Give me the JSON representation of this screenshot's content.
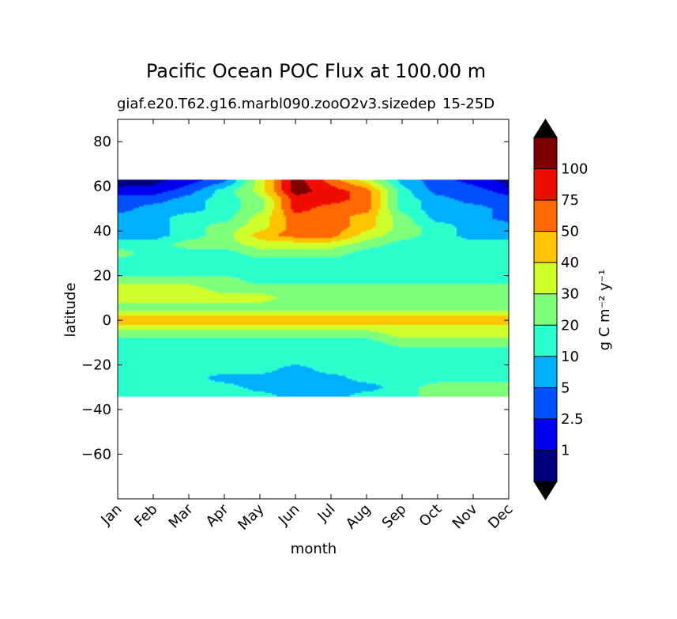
{
  "chart_data": {
    "type": "contourf",
    "title": "Pacific Ocean POC Flux at 100.00 m",
    "subtitle_left": "giaf.e20.T62.g16.marbl090.zooO2v3.sizedep",
    "subtitle_right": "15-25D",
    "xlabel": "month",
    "ylabel": "latitude",
    "x_ticks": [
      "Jan",
      "Feb",
      "Mar",
      "Apr",
      "May",
      "Jun",
      "Jul",
      "Aug",
      "Sep",
      "Oct",
      "Nov",
      "Dec"
    ],
    "y_ticks": [
      80,
      60,
      40,
      20,
      0,
      -20,
      -40,
      -60
    ],
    "ylim": [
      -80,
      90
    ],
    "data_lat_range": [
      -34,
      63
    ],
    "colorbar": {
      "label": "g C m⁻² y⁻¹",
      "levels": [
        "1",
        "2.5",
        "5",
        "10",
        "20",
        "30",
        "40",
        "50",
        "75",
        "100"
      ],
      "colors": [
        "#00007f",
        "#0000f0",
        "#0050ff",
        "#00b0ff",
        "#29ffce",
        "#7dff7a",
        "#ceff29",
        "#ffc400",
        "#ff6800",
        "#f00d00",
        "#7f0000"
      ],
      "extend": "both"
    },
    "x_months": [
      0,
      1,
      2,
      3,
      4,
      5,
      6,
      7,
      8,
      9,
      10,
      11
    ],
    "lat_grid": [
      -34,
      -30,
      -26,
      -22,
      -18,
      -14,
      -10,
      -6,
      -3,
      -1,
      1,
      3,
      6,
      10,
      14,
      18,
      22,
      26,
      30,
      34,
      38,
      42,
      46,
      50,
      54,
      58,
      63
    ],
    "class_values_by_month": [
      [
        4,
        4,
        4,
        4,
        4,
        4,
        4,
        5,
        6,
        7,
        7,
        6,
        5,
        6,
        6,
        5,
        4,
        4,
        5,
        4,
        3,
        3,
        3,
        2,
        2,
        1,
        0
      ],
      [
        4,
        4,
        4,
        4,
        4,
        4,
        4,
        5,
        6,
        7,
        7,
        6,
        5,
        6,
        6,
        5,
        4,
        4,
        4,
        4,
        3,
        3,
        3,
        3,
        2,
        1,
        0
      ],
      [
        4,
        4,
        4,
        4,
        4,
        4,
        4,
        5,
        6,
        7,
        7,
        6,
        5,
        6,
        6,
        5,
        4,
        4,
        4,
        5,
        4,
        4,
        4,
        3,
        3,
        2,
        1
      ],
      [
        4,
        4,
        3,
        4,
        4,
        4,
        4,
        5,
        6,
        7,
        7,
        6,
        5,
        6,
        5,
        5,
        4,
        4,
        4,
        5,
        5,
        5,
        4,
        4,
        4,
        4,
        2
      ],
      [
        4,
        3,
        3,
        4,
        4,
        4,
        4,
        5,
        6,
        7,
        7,
        6,
        5,
        6,
        5,
        4,
        4,
        4,
        5,
        6,
        7,
        6,
        6,
        5,
        5,
        6,
        6
      ],
      [
        3,
        3,
        3,
        3,
        4,
        4,
        4,
        5,
        6,
        7,
        7,
        6,
        5,
        5,
        5,
        4,
        4,
        4,
        5,
        6,
        8,
        8,
        8,
        9,
        9,
        10,
        10
      ],
      [
        3,
        3,
        3,
        4,
        4,
        4,
        4,
        5,
        6,
        7,
        7,
        6,
        5,
        5,
        5,
        4,
        4,
        4,
        5,
        6,
        8,
        8,
        8,
        8,
        9,
        9,
        8
      ],
      [
        4,
        3,
        4,
        4,
        4,
        4,
        4,
        5,
        6,
        7,
        7,
        6,
        5,
        5,
        5,
        4,
        4,
        4,
        4,
        5,
        6,
        7,
        7,
        8,
        8,
        8,
        6
      ],
      [
        4,
        4,
        4,
        4,
        4,
        4,
        5,
        6,
        6,
        7,
        7,
        6,
        5,
        5,
        5,
        4,
        4,
        4,
        4,
        4,
        5,
        5,
        5,
        4,
        4,
        4,
        3
      ],
      [
        5,
        5,
        4,
        4,
        4,
        4,
        5,
        6,
        6,
        7,
        7,
        6,
        5,
        5,
        5,
        4,
        4,
        4,
        4,
        4,
        4,
        4,
        3,
        3,
        3,
        2,
        2
      ],
      [
        5,
        5,
        4,
        4,
        4,
        4,
        5,
        6,
        6,
        7,
        7,
        6,
        5,
        5,
        5,
        4,
        4,
        4,
        4,
        4,
        3,
        3,
        3,
        3,
        2,
        2,
        1
      ],
      [
        5,
        5,
        4,
        4,
        4,
        4,
        5,
        6,
        6,
        7,
        7,
        6,
        5,
        5,
        5,
        4,
        4,
        4,
        4,
        4,
        3,
        3,
        2,
        2,
        2,
        1,
        0
      ]
    ]
  }
}
